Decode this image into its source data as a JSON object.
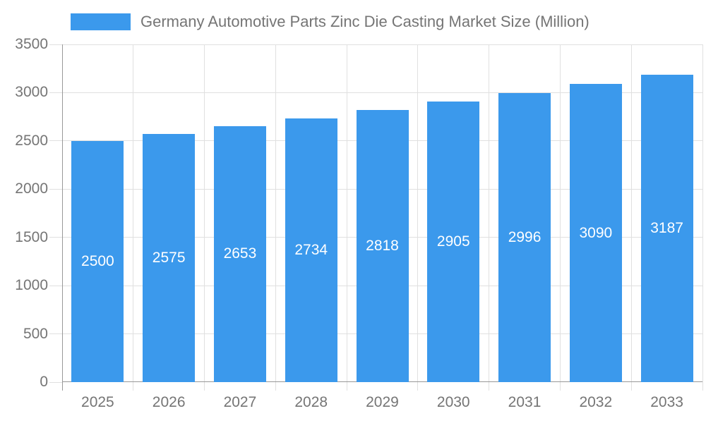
{
  "chart_data": {
    "type": "bar",
    "title": "Germany Automotive Parts Zinc Die Casting Market Size (Million)",
    "legend": {
      "label": "Germany Automotive Parts Zinc Die Casting Market Size (Million)",
      "position": "top-left"
    },
    "categories": [
      "2025",
      "2026",
      "2027",
      "2028",
      "2029",
      "2030",
      "2031",
      "2032",
      "2033"
    ],
    "values": [
      2500,
      2575,
      2653,
      2734,
      2818,
      2905,
      2996,
      3090,
      3187
    ],
    "xlabel": "",
    "ylabel": "",
    "ylim": [
      0,
      3500
    ],
    "yticks": [
      0,
      500,
      1000,
      1500,
      2000,
      2500,
      3000,
      3500
    ],
    "grid": true,
    "colors": {
      "bar": "#3B99EC",
      "bar_value_label": "#ffffff",
      "axis_text": "#757575",
      "legend_text": "#757575",
      "gridline": "#e0e0e0",
      "axis_line": "#989898",
      "background": "#ffffff"
    }
  }
}
